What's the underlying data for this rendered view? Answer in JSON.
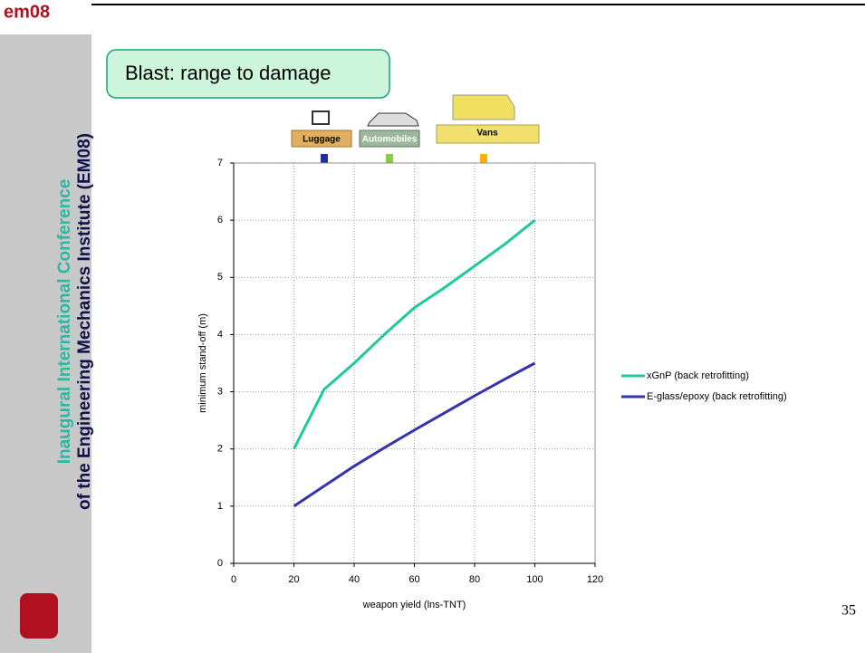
{
  "slide": {
    "logo": "em08",
    "sidebar_line1": "Inaugural International Conference",
    "sidebar_line2": "of the Engineering Mechanics Institute (EM08)",
    "title": "Blast: range to damage",
    "icons": [
      {
        "label": "Luggage"
      },
      {
        "label": "Automobiles"
      },
      {
        "label": "Vans"
      }
    ],
    "page_number": "35"
  },
  "chart_data": {
    "type": "line",
    "x_label": "weapon yield (lns-TNT)",
    "y_label": "minimum stand-off (m)",
    "x": [
      20,
      30,
      40,
      50,
      60,
      70,
      80,
      90,
      100
    ],
    "series": [
      {
        "name": "xGnP (back retrofitting)",
        "color": "#1ec8a0",
        "values": [
          2,
          3.04,
          3.5,
          4.0,
          4.47,
          4.82,
          5.2,
          5.58,
          6
        ]
      },
      {
        "name": "E-glass/epoxy (back retrofitting)",
        "color": "#3333aa",
        "values": [
          1,
          1.35,
          1.7,
          2.02,
          2.33,
          2.63,
          2.93,
          3.22,
          3.5
        ]
      }
    ],
    "xlim": [
      0,
      120
    ],
    "xticks": [
      0,
      20,
      40,
      60,
      80,
      100,
      120
    ],
    "ylim": [
      0,
      7
    ],
    "yticks": [
      0,
      1,
      2,
      3,
      4,
      5,
      6,
      7
    ],
    "grid": true
  }
}
